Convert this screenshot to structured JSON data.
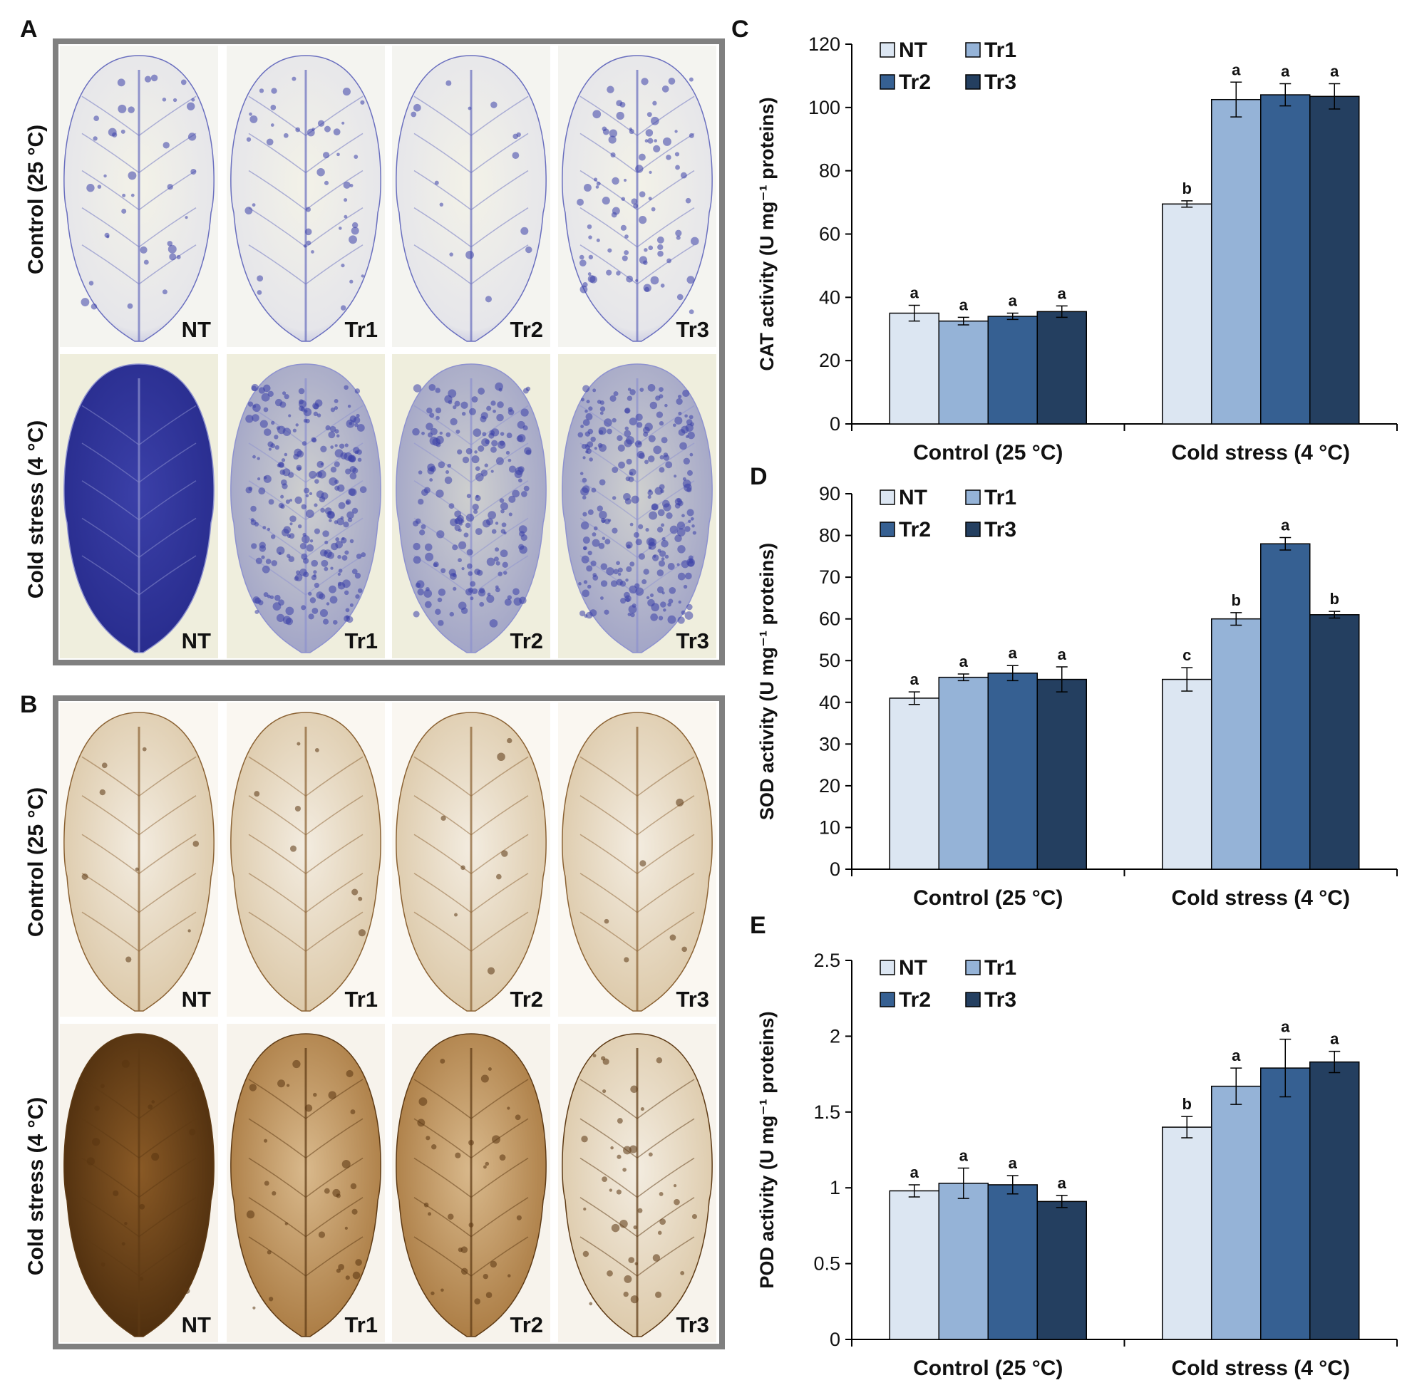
{
  "panel_letters": {
    "a": "A",
    "b": "B",
    "c": "C",
    "d": "D",
    "e": "E"
  },
  "photo_panels": {
    "A": {
      "rows": [
        "Control (25 °C)",
        "Cold stress (4 °C)"
      ],
      "leaf_labels": [
        "NT",
        "Tr1",
        "Tr2",
        "Tr3"
      ],
      "stain": "NBT (blue formazan spots)",
      "colors": {
        "frame": "#808080",
        "stain": "#3b3fa8",
        "background": "#f2f1e6"
      }
    },
    "B": {
      "rows": [
        "Control (25 °C)",
        "Cold stress (4 °C)"
      ],
      "leaf_labels": [
        "NT",
        "Tr1",
        "Tr2",
        "Tr3"
      ],
      "stain": "DAB (brown precipitate)",
      "colors": {
        "frame": "#808080",
        "stain": "#5a3510",
        "background": "#f6f3ec"
      }
    }
  },
  "legend": {
    "entries": [
      "NT",
      "Tr1",
      "Tr2",
      "Tr3"
    ]
  },
  "series_colors": [
    "#dce6f2",
    "#95b3d7",
    "#366092",
    "#243f60"
  ],
  "chart_data": [
    {
      "panel": "C",
      "type": "bar",
      "ylabel": "CAT activity (U mg⁻¹ proteins)",
      "categories": [
        "Control (25 °C)",
        "Cold stress (4 °C)"
      ],
      "ylim": [
        0,
        120
      ],
      "yticks": [
        0,
        20,
        40,
        60,
        80,
        100,
        120
      ],
      "series": [
        {
          "name": "NT",
          "values": [
            35,
            69.5
          ],
          "errors": [
            2.5,
            1
          ],
          "letters": [
            "a",
            "b"
          ]
        },
        {
          "name": "Tr1",
          "values": [
            32.5,
            102.5
          ],
          "errors": [
            1.2,
            5.5
          ],
          "letters": [
            "a",
            "a"
          ]
        },
        {
          "name": "Tr2",
          "values": [
            34,
            104
          ],
          "errors": [
            1,
            3.5
          ],
          "letters": [
            "a",
            "a"
          ]
        },
        {
          "name": "Tr3",
          "values": [
            35.5,
            103.5
          ],
          "errors": [
            1.8,
            4
          ],
          "letters": [
            "a",
            "a"
          ]
        }
      ]
    },
    {
      "panel": "D",
      "type": "bar",
      "ylabel": "SOD activity (U mg⁻¹ proteins)",
      "categories": [
        "Control (25 °C)",
        "Cold stress (4 °C)"
      ],
      "ylim": [
        0,
        90
      ],
      "yticks": [
        0,
        10,
        20,
        30,
        40,
        50,
        60,
        70,
        80,
        90
      ],
      "series": [
        {
          "name": "NT",
          "values": [
            41,
            45.5
          ],
          "errors": [
            1.5,
            2.8
          ],
          "letters": [
            "a",
            "c"
          ]
        },
        {
          "name": "Tr1",
          "values": [
            46,
            60
          ],
          "errors": [
            0.8,
            1.5
          ],
          "letters": [
            "a",
            "b"
          ]
        },
        {
          "name": "Tr2",
          "values": [
            47,
            78
          ],
          "errors": [
            1.8,
            1.5
          ],
          "letters": [
            "a",
            "a"
          ]
        },
        {
          "name": "Tr3",
          "values": [
            45.5,
            61
          ],
          "errors": [
            3,
            0.8
          ],
          "letters": [
            "a",
            "b"
          ]
        }
      ]
    },
    {
      "panel": "E",
      "type": "bar",
      "ylabel": "POD activity (U mg⁻¹ proteins)",
      "categories": [
        "Control (25 °C)",
        "Cold stress (4 °C)"
      ],
      "ylim": [
        0,
        2.5
      ],
      "yticks": [
        0,
        0.5,
        1,
        1.5,
        2,
        2.5
      ],
      "series": [
        {
          "name": "NT",
          "values": [
            0.98,
            1.4
          ],
          "errors": [
            0.04,
            0.07
          ],
          "letters": [
            "a",
            "b"
          ]
        },
        {
          "name": "Tr1",
          "values": [
            1.03,
            1.67
          ],
          "errors": [
            0.1,
            0.12
          ],
          "letters": [
            "a",
            "a"
          ]
        },
        {
          "name": "Tr2",
          "values": [
            1.02,
            1.79
          ],
          "errors": [
            0.06,
            0.19
          ],
          "letters": [
            "a",
            "a"
          ]
        },
        {
          "name": "Tr3",
          "values": [
            0.91,
            1.83
          ],
          "errors": [
            0.04,
            0.07
          ],
          "letters": [
            "a",
            "a"
          ]
        }
      ]
    }
  ]
}
